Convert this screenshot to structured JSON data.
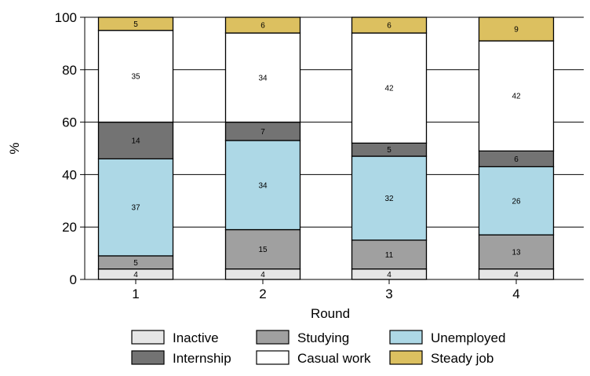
{
  "chart_data": {
    "type": "bar",
    "stacked": true,
    "categories": [
      "1",
      "2",
      "3",
      "4"
    ],
    "xlabel": "Round",
    "ylabel": "%",
    "ylim": [
      0,
      100
    ],
    "yticks": [
      0,
      20,
      40,
      60,
      80,
      100
    ],
    "grid": "horizontal",
    "legend_position": "bottom",
    "series": [
      {
        "name": "Inactive",
        "values": [
          4,
          4,
          4,
          4
        ],
        "color": "#e6e6e6"
      },
      {
        "name": "Studying",
        "values": [
          5,
          15,
          11,
          13
        ],
        "color": "#a0a0a0"
      },
      {
        "name": "Unemployed",
        "values": [
          37,
          34,
          32,
          26
        ],
        "color": "#add8e6"
      },
      {
        "name": "Internship",
        "values": [
          14,
          7,
          5,
          6
        ],
        "color": "#737373"
      },
      {
        "name": "Casual work",
        "values": [
          35,
          34,
          42,
          42
        ],
        "color": "#ffffff"
      },
      {
        "name": "Steady job",
        "values": [
          5,
          6,
          6,
          9
        ],
        "color": "#dcc060"
      }
    ],
    "legend_order": [
      "Inactive",
      "Studying",
      "Unemployed",
      "Internship",
      "Casual work",
      "Steady job"
    ]
  }
}
